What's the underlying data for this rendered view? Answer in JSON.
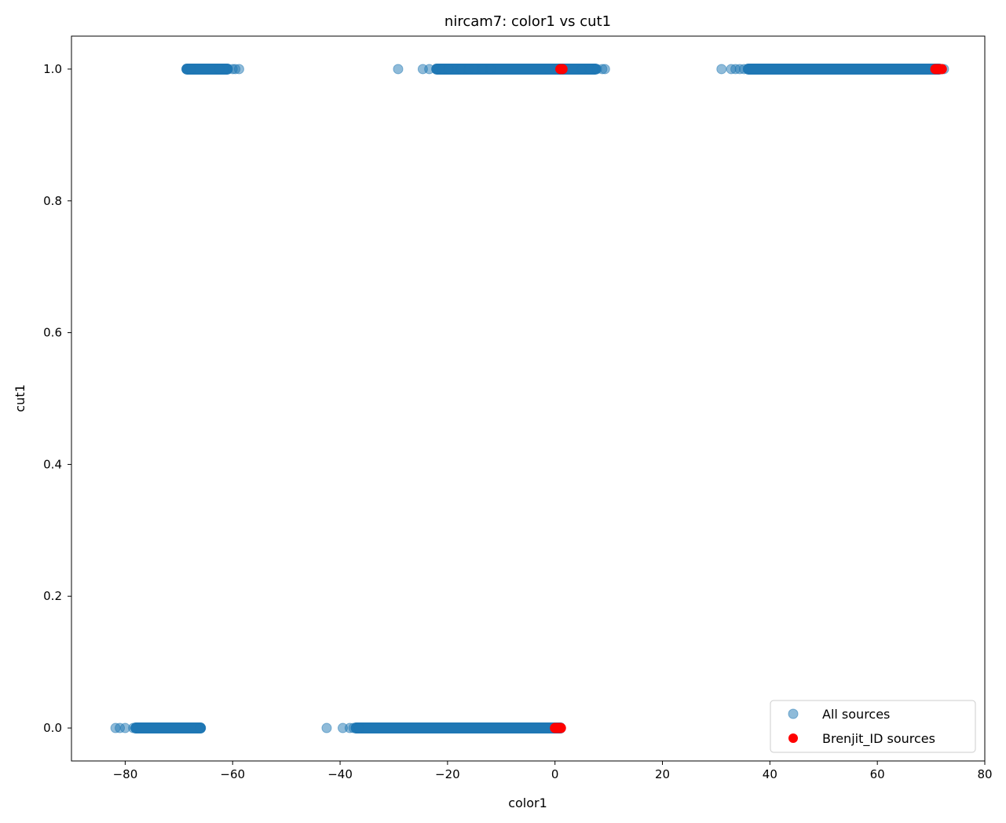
{
  "chart_data": {
    "type": "scatter",
    "title": "nircam7: color1 vs cut1",
    "xlabel": "color1",
    "ylabel": "cut1",
    "xlim": [
      -90,
      80
    ],
    "ylim": [
      -0.05,
      1.05
    ],
    "xticks": [
      -80,
      -60,
      -40,
      -20,
      0,
      20,
      40,
      60,
      80
    ],
    "yticks": [
      0.0,
      0.2,
      0.4,
      0.6,
      0.8,
      1.0
    ],
    "xtick_labels": [
      "−80",
      "−60",
      "−40",
      "−20",
      "0",
      "20",
      "40",
      "60",
      "80"
    ],
    "ytick_labels": [
      "0.0",
      "0.2",
      "0.4",
      "0.6",
      "0.8",
      "1.0"
    ],
    "grid": false,
    "legend_position": "lower-right",
    "series": [
      {
        "name": "All sources",
        "color": "#1f77b4",
        "alpha": 0.5,
        "segments": [
          {
            "y": 1.0,
            "x_start": -68.5,
            "x_end": -61.0
          },
          {
            "y": 1.0,
            "x_start": -22.0,
            "x_end": -1.0
          },
          {
            "y": 1.0,
            "x_start": -1.0,
            "x_end": 7.5
          },
          {
            "y": 1.0,
            "x_start": 36.0,
            "x_end": 71.5
          },
          {
            "y": 0.0,
            "x_start": -78.0,
            "x_end": -66.0
          },
          {
            "y": 0.0,
            "x_start": -37.0,
            "x_end": 1.0
          }
        ],
        "points": [
          {
            "x": -68.5,
            "y": 1.0
          },
          {
            "x": -67.8,
            "y": 1.0
          },
          {
            "x": -62.5,
            "y": 1.0
          },
          {
            "x": -60.0,
            "y": 1.0
          },
          {
            "x": -59.5,
            "y": 1.0
          },
          {
            "x": -58.8,
            "y": 1.0
          },
          {
            "x": -29.2,
            "y": 1.0
          },
          {
            "x": -24.6,
            "y": 1.0
          },
          {
            "x": -23.4,
            "y": 1.0
          },
          {
            "x": -22.0,
            "y": 1.0
          },
          {
            "x": -21.0,
            "y": 1.0
          },
          {
            "x": -19.8,
            "y": 1.0
          },
          {
            "x": -17.5,
            "y": 1.0
          },
          {
            "x": -16.0,
            "y": 1.0
          },
          {
            "x": -15.0,
            "y": 1.0
          },
          {
            "x": -13.5,
            "y": 1.0
          },
          {
            "x": -12.0,
            "y": 1.0
          },
          {
            "x": 5.0,
            "y": 1.0
          },
          {
            "x": 6.5,
            "y": 1.0
          },
          {
            "x": 7.8,
            "y": 1.0
          },
          {
            "x": 8.8,
            "y": 1.0
          },
          {
            "x": 9.3,
            "y": 1.0
          },
          {
            "x": 31.0,
            "y": 1.0
          },
          {
            "x": 32.8,
            "y": 1.0
          },
          {
            "x": 33.6,
            "y": 1.0
          },
          {
            "x": 34.4,
            "y": 1.0
          },
          {
            "x": 35.2,
            "y": 1.0
          },
          {
            "x": 72.0,
            "y": 1.0
          },
          {
            "x": 72.4,
            "y": 1.0
          },
          {
            "x": -81.8,
            "y": 0.0
          },
          {
            "x": -81.0,
            "y": 0.0
          },
          {
            "x": -80.0,
            "y": 0.0
          },
          {
            "x": -78.5,
            "y": 0.0
          },
          {
            "x": -66.0,
            "y": 0.0
          },
          {
            "x": -42.5,
            "y": 0.0
          },
          {
            "x": -39.5,
            "y": 0.0
          },
          {
            "x": -38.2,
            "y": 0.0
          },
          {
            "x": -37.5,
            "y": 0.0
          },
          {
            "x": -36.5,
            "y": 0.0
          }
        ]
      },
      {
        "name": "Brenjit_ID sources",
        "color": "#ff0000",
        "alpha": 1.0,
        "points": [
          {
            "x": 1.0,
            "y": 1.0
          },
          {
            "x": 1.4,
            "y": 1.0
          },
          {
            "x": 70.8,
            "y": 1.0
          },
          {
            "x": 71.2,
            "y": 1.0
          },
          {
            "x": 71.6,
            "y": 1.0
          },
          {
            "x": 72.0,
            "y": 1.0
          },
          {
            "x": 0.0,
            "y": 0.0
          },
          {
            "x": 0.3,
            "y": 0.0
          },
          {
            "x": 0.6,
            "y": 0.0
          },
          {
            "x": 0.9,
            "y": 0.0
          },
          {
            "x": 1.1,
            "y": 0.0
          }
        ]
      }
    ]
  }
}
